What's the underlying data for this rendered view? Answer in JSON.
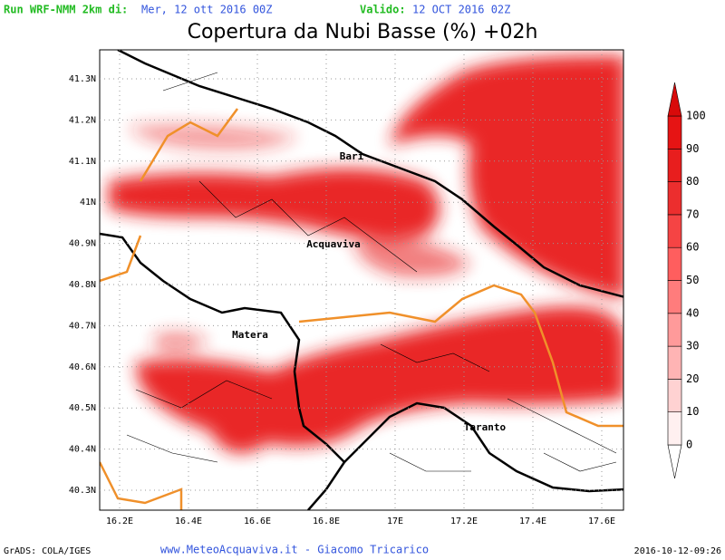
{
  "header": {
    "run_label": "Run WRF-NMM 2km di:",
    "run_date": "Mer, 12 ott 2016 00Z",
    "valid_label": "Valido:",
    "valid_date": "12 OCT 2016 02Z"
  },
  "title": "Copertura da Nubi Basse (%) +02h",
  "map": {
    "lat_labels": [
      "41.3N",
      "41.2N",
      "41.1N",
      "41N",
      "40.9N",
      "40.8N",
      "40.7N",
      "40.6N",
      "40.5N",
      "40.4N",
      "40.3N"
    ],
    "lon_labels": [
      "16.2E",
      "16.4E",
      "16.6E",
      "16.8E",
      "17E",
      "17.2E",
      "17.4E",
      "17.6E"
    ],
    "cities": [
      "Bari",
      "Acquaviva",
      "Matera",
      "Taranto"
    ]
  },
  "colorbar": {
    "levels": [
      0,
      10,
      20,
      30,
      40,
      50,
      60,
      70,
      80,
      90,
      100
    ],
    "colors": [
      "#ffffff",
      "#fff0f0",
      "#ffd2d2",
      "#ffb4b4",
      "#ff9a9a",
      "#ff7c7c",
      "#ff5e5e",
      "#f54444",
      "#ec2e2e",
      "#e81e1e",
      "#e61414",
      "#d80a0a"
    ]
  },
  "footer": {
    "software": "GrADS: COLA/IGES",
    "credit": "www.MeteoAcquaviva.it - Giacomo Tricarico",
    "timestamp": "2016-10-12-09:26"
  }
}
